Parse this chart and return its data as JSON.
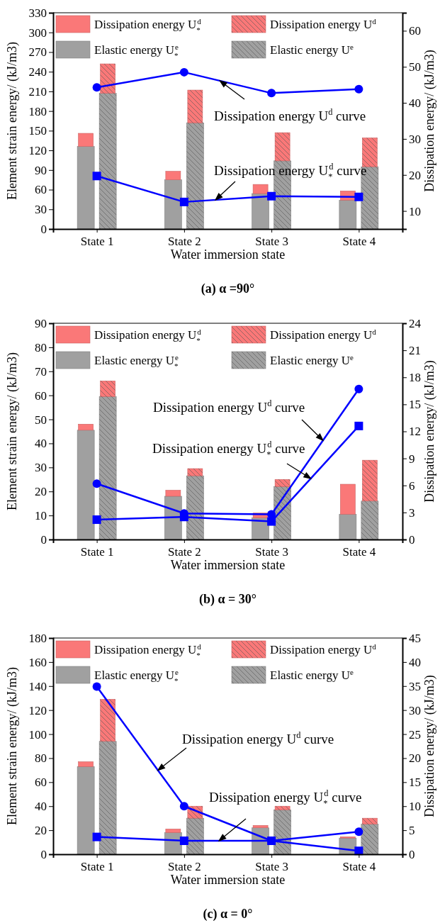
{
  "chart_data": [
    {
      "type": "bar",
      "title": "(a) α =90°",
      "xlabel": "Water immersion state",
      "ylabel": "Element strain energy/ (kJ/m3)",
      "y2label": "Dissipation energy/ (kJ/m3)",
      "categories": [
        "State 1",
        "State 2",
        "State 3",
        "State 4"
      ],
      "legend": "top",
      "ylim": [
        0,
        330
      ],
      "yticks": [
        0,
        30,
        60,
        90,
        120,
        150,
        180,
        210,
        240,
        270,
        300,
        330
      ],
      "y2lim": [
        5,
        65
      ],
      "y2ticks": [
        10,
        20,
        30,
        40,
        50,
        60
      ],
      "annotations": [
        "Dissipation energy  U$^{d}$ curve",
        "Dissipation energy  U$_{*}$$^{d}$ curve"
      ],
      "series": [
        {
          "name": "Elastic energy U$_{*}$$^{e}$",
          "color": "#a0a0a0",
          "values": [
            126,
            75,
            54,
            44
          ]
        },
        {
          "name": "Elastic energy U$^{e}$",
          "color": "#a0a0a0",
          "values": [
            207,
            162,
            104,
            95
          ]
        },
        {
          "name": "Dissipation energy U$_{*}$$^{d}$",
          "color": "#fa7878",
          "base": [
            126,
            75,
            54,
            44
          ],
          "values": [
            20,
            13,
            14,
            14
          ]
        },
        {
          "name": "Dissipation energy U$^{d}$",
          "color": "#fa7878",
          "base": [
            207,
            162,
            104,
            95
          ],
          "values": [
            45,
            50,
            43,
            44
          ]
        },
        {
          "type": "line",
          "axis": "y2",
          "color": "#0000ff",
          "marker": "circle",
          "values": [
            44.3,
            48.5,
            42.7,
            43.8
          ]
        },
        {
          "type": "line",
          "axis": "y2",
          "color": "#0000ff",
          "marker": "square",
          "values": [
            19.7,
            12.5,
            14.1,
            13.9
          ]
        }
      ]
    },
    {
      "type": "bar",
      "title": "(b) α = 30°",
      "xlabel": "Water immersion state",
      "ylabel": "Element strain energy/ (kJ/m3)",
      "y2label": "Dissipation energy/ (kJ/m3)",
      "categories": [
        "State 1",
        "State 2",
        "State 3",
        "State 4"
      ],
      "legend": "top",
      "ylim": [
        0,
        90
      ],
      "yticks": [
        0,
        10,
        20,
        30,
        40,
        50,
        60,
        70,
        80,
        90
      ],
      "y2lim": [
        0,
        24
      ],
      "y2ticks": [
        0,
        3,
        6,
        9,
        12,
        15,
        18,
        21,
        24
      ],
      "annotations": [
        "Dissipation energy  U$^{d}$ curve",
        "Dissipation energy  U$_{*}$$^{d}$ curve"
      ],
      "series": [
        {
          "name": "Elastic energy U$_{*}$$^{e}$",
          "color": "#a0a0a0",
          "values": [
            45.5,
            18,
            9,
            10.5
          ]
        },
        {
          "name": "Elastic energy U$^{e}$",
          "color": "#a0a0a0",
          "values": [
            59.5,
            26.5,
            22,
            16
          ]
        },
        {
          "name": "Dissipation energy U$_{*}$$^{d}$",
          "color": "#fa7878",
          "base": [
            45.5,
            18,
            9,
            10.5
          ],
          "values": [
            2.5,
            2.5,
            2,
            12.5
          ]
        },
        {
          "name": "Dissipation energy U$^{d}$",
          "color": "#fa7878",
          "base": [
            59.5,
            26.5,
            22,
            16
          ],
          "values": [
            6.5,
            3,
            3,
            17
          ]
        },
        {
          "type": "line",
          "axis": "y2",
          "color": "#0000ff",
          "marker": "circle",
          "values": [
            6.2,
            2.9,
            2.8,
            16.7
          ]
        },
        {
          "type": "line",
          "axis": "y2",
          "color": "#0000ff",
          "marker": "square",
          "values": [
            2.2,
            2.5,
            2.0,
            12.6
          ]
        }
      ]
    },
    {
      "type": "bar",
      "title": "(c) α = 0°",
      "xlabel": "Water immersion state",
      "ylabel": "Element strain energy/ (kJ/m3)",
      "y2label": "Dissipation energy/ (kJ/m3)",
      "categories": [
        "State 1",
        "State 2",
        "State 3",
        "State 4"
      ],
      "legend": "top",
      "ylim": [
        0,
        180
      ],
      "yticks": [
        0,
        20,
        40,
        60,
        80,
        100,
        120,
        140,
        160,
        180
      ],
      "y2lim": [
        0,
        45
      ],
      "y2ticks": [
        0,
        5,
        10,
        15,
        20,
        25,
        30,
        35,
        40,
        45
      ],
      "annotations": [
        "Dissipation energy  U$^{d}$ curve",
        "Dissipation energy  U$_{*}$$^{d}$ curve"
      ],
      "series": [
        {
          "name": "Elastic energy U$_{*}$$^{e}$",
          "color": "#a0a0a0",
          "values": [
            73,
            18,
            22,
            13.5
          ]
        },
        {
          "name": "Elastic energy U$^{e}$",
          "color": "#a0a0a0",
          "values": [
            94,
            30,
            37,
            25
          ]
        },
        {
          "name": "Dissipation energy U$_{*}$$^{d}$",
          "color": "#fa7878",
          "base": [
            73,
            18,
            22,
            13.5
          ],
          "values": [
            4,
            3,
            2,
            1
          ]
        },
        {
          "name": "Dissipation energy U$^{d}$",
          "color": "#fa7878",
          "base": [
            94,
            30,
            37,
            25
          ],
          "values": [
            35,
            10,
            3,
            5
          ]
        },
        {
          "type": "line",
          "axis": "y2",
          "color": "#0000ff",
          "marker": "circle",
          "values": [
            34.9,
            10,
            2.8,
            4.7
          ]
        },
        {
          "type": "line",
          "axis": "y2",
          "color": "#0000ff",
          "marker": "square",
          "values": [
            3.6,
            2.8,
            2.8,
            0.7
          ]
        }
      ]
    }
  ]
}
